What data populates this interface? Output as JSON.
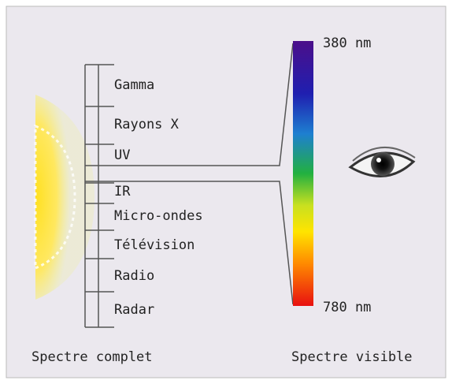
{
  "bands": [
    "Gamma",
    "Rayons X",
    "UV",
    "IR",
    "Micro-ondes",
    "Télévision",
    "Radio",
    "Radar"
  ],
  "visible": {
    "top_label": "380 nm",
    "bottom_label": "780 nm"
  },
  "captions": {
    "left": "Spectre complet",
    "right": "Spectre visible"
  }
}
